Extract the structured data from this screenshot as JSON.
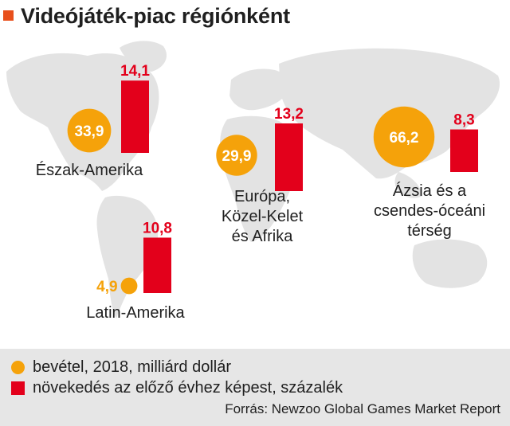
{
  "title": "Videójáték-piac régiónként",
  "colors": {
    "accent": "#e8501c",
    "revenue": "#f5a20a",
    "growth": "#e3001b",
    "map": "#e3e3e3",
    "legend_bg": "#e6e6e6"
  },
  "legend": {
    "revenue_label": "bevétel, 2018, milliárd dollár",
    "growth_label": "növekedés az előző évhez képest, százalék"
  },
  "source": "Forrás: Newzoo Global Games Market Report",
  "chart_data": {
    "type": "bubble-bar-map",
    "background": "world map",
    "series": [
      {
        "name": "bevétel, 2018, milliárd dollár",
        "marker": "circle",
        "unit": "milliárd dollár"
      },
      {
        "name": "növekedés az előző évhez képest, százalék",
        "marker": "bar",
        "unit": "százalék"
      }
    ],
    "regions": [
      {
        "key": "north_america",
        "label": [
          "Észak-Amerika"
        ],
        "revenue": 33.9,
        "revenue_label": "33,9",
        "growth": 14.1,
        "growth_label": "14,1"
      },
      {
        "key": "latin_america",
        "label": [
          "Latin-Amerika"
        ],
        "revenue": 4.9,
        "revenue_label": "4,9",
        "growth": 10.8,
        "growth_label": "10,8"
      },
      {
        "key": "europe_mea",
        "label": [
          "Európa,",
          "Közel-Kelet",
          "és Afrika"
        ],
        "revenue": 29.9,
        "revenue_label": "29,9",
        "growth": 13.2,
        "growth_label": "13,2"
      },
      {
        "key": "asia_pacific",
        "label": [
          "Ázsia és a",
          "csendes-óceáni",
          "térség"
        ],
        "revenue": 66.2,
        "revenue_label": "66,2",
        "growth": 8.3,
        "growth_label": "8,3"
      }
    ]
  }
}
